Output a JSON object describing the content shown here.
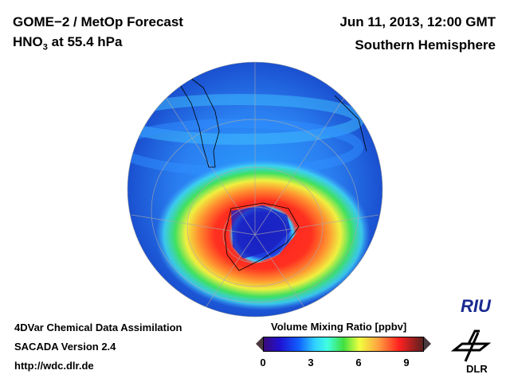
{
  "header": {
    "title_line1": "GOME−2 / MetOp Forecast",
    "species": "HNO",
    "species_sub": "3",
    "level_text": " at 55.4 hPa",
    "date": "Jun 11, 2013, 12:00 GMT",
    "region": "Southern Hemisphere"
  },
  "footer": {
    "line1": "4DVar Chemical Data Assimilation",
    "line2": "SACADA Version 2.4",
    "line3": "http://wdc.dlr.de"
  },
  "colorbar": {
    "title": "Volume Mixing Ratio [ppbv]",
    "ticks": [
      "0",
      "3",
      "6",
      "9"
    ],
    "range": [
      0,
      10
    ]
  },
  "logos": {
    "riu": "RIU",
    "dlr": "DLR"
  }
}
